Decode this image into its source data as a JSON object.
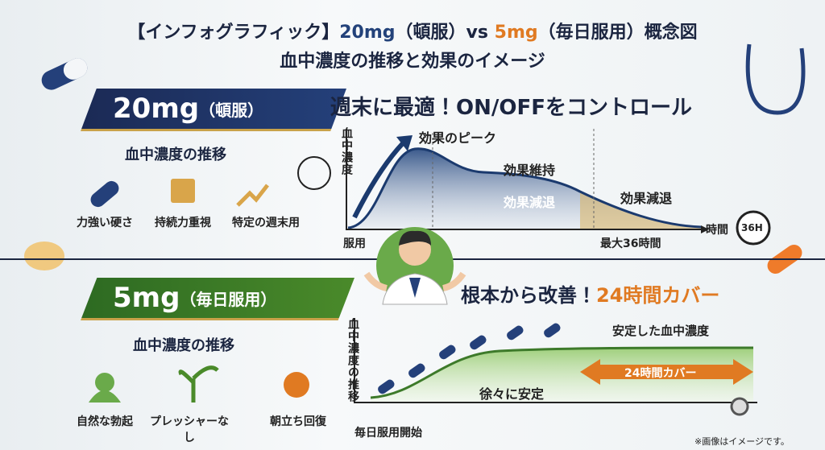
{
  "header": {
    "title_parts": [
      "【インフォグラフィック】",
      "20mg",
      "（頓服）vs ",
      "5mg",
      "（毎日服用）概念図"
    ],
    "subtitle": "血中濃度の推移と効果のイメージ"
  },
  "section_20mg": {
    "badge": "20mg",
    "badge_sub": "（頓服）",
    "headline": "週末に最適！ON/OFFをコントロール",
    "subhead": "血中濃度の推移",
    "features": [
      "力強い硬さ",
      "持続力重視",
      "特定の週末用"
    ],
    "chart": {
      "y_label": "血中濃度",
      "x_start": "服用",
      "x_end": "最大36時間",
      "x_axis": "時間",
      "timer": "36H",
      "annotations": [
        "効果のピーク",
        "効果維持",
        "効果減退",
        "効果減退"
      ]
    }
  },
  "section_5mg": {
    "badge": "5mg",
    "badge_sub": "（毎日服用）",
    "headline": "根本から改善！",
    "headline_accent": "24時間カバー",
    "subhead": "血中濃度の推移",
    "features": [
      "自然な勃起",
      "プレッシャーなし",
      "朝立ち回復"
    ],
    "chart": {
      "y_label": "血中濃度の推移",
      "x_start": "毎日服用開始",
      "annotations": [
        "安定した血中濃度",
        "徐々に安定",
        "24時間カバー"
      ]
    }
  },
  "footnote": "※画像はイメージです。"
}
